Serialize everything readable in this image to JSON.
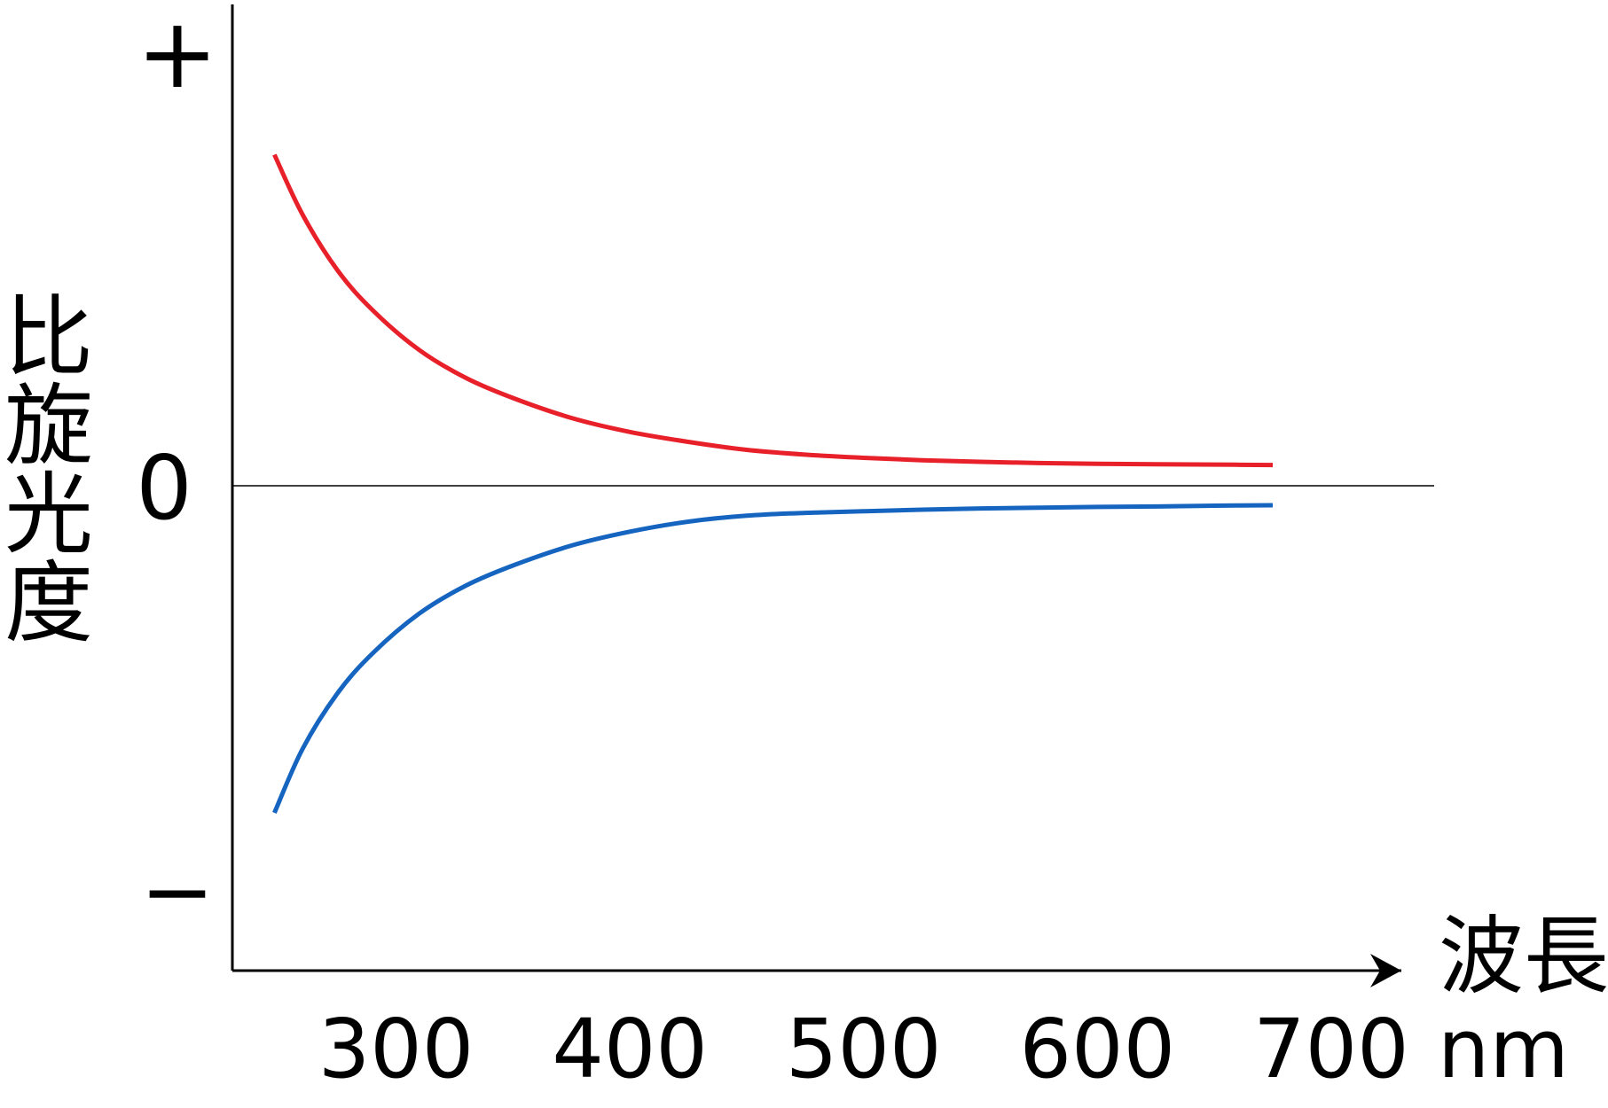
{
  "chart_data": {
    "type": "line",
    "xlabel": "波長",
    "xunit": "nm",
    "ylabel": "比旋光度",
    "xlim": [
      230,
      730
    ],
    "ylim": [
      -1,
      1
    ],
    "x_ticks": [
      "300",
      "400",
      "500",
      "600",
      "700"
    ],
    "y_ticks": {
      "plus": "+",
      "zero": "0",
      "minus": "−"
    },
    "colors": {
      "positive": "#e8202a",
      "negative": "#1565c0",
      "axis": "#000000"
    },
    "series": [
      {
        "color": "#e8202a",
        "x": [
          248,
          260,
          275,
          290,
          310,
          330,
          350,
          375,
          400,
          425,
          450,
          475,
          500,
          525,
          550,
          575,
          600,
          625,
          650,
          675
        ],
        "y": [
          0.83,
          0.68,
          0.54,
          0.44,
          0.34,
          0.27,
          0.22,
          0.17,
          0.135,
          0.11,
          0.09,
          0.078,
          0.07,
          0.064,
          0.06,
          0.057,
          0.055,
          0.054,
          0.053,
          0.052
        ]
      },
      {
        "color": "#1565c0",
        "x": [
          248,
          260,
          275,
          290,
          310,
          330,
          350,
          375,
          400,
          425,
          450,
          475,
          500,
          525,
          550,
          575,
          600,
          625,
          650,
          675
        ],
        "y": [
          -0.82,
          -0.66,
          -0.52,
          -0.42,
          -0.32,
          -0.25,
          -0.2,
          -0.15,
          -0.115,
          -0.09,
          -0.075,
          -0.068,
          -0.064,
          -0.06,
          -0.057,
          -0.055,
          -0.053,
          -0.052,
          -0.05,
          -0.049
        ]
      }
    ]
  }
}
